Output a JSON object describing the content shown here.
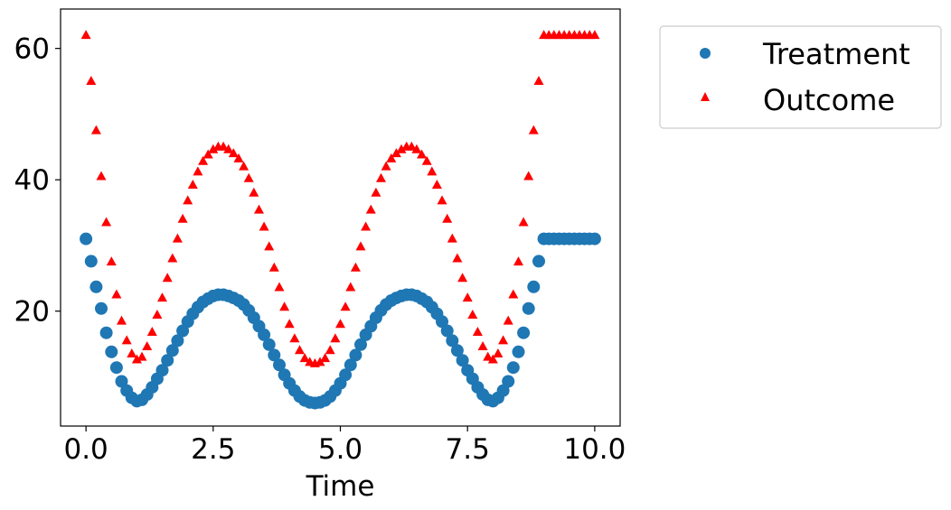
{
  "chart_data": {
    "type": "scatter",
    "title": "",
    "xlabel": "Time",
    "ylabel": "",
    "xlim": [
      -0.5,
      10.5
    ],
    "ylim": [
      2.5,
      66
    ],
    "xticks": [
      0.0,
      2.5,
      5.0,
      7.5,
      10.0
    ],
    "xtick_labels": [
      "0.0",
      "2.5",
      "5.0",
      "7.5",
      "10.0"
    ],
    "yticks": [
      20,
      40,
      60
    ],
    "ytick_labels": [
      "20",
      "40",
      "60"
    ],
    "grid": false,
    "legend_position": "outside upper right",
    "series": [
      {
        "name": "Treatment",
        "marker": "circle",
        "color": "#1f77b4",
        "x": [
          0.0,
          0.1,
          0.2,
          0.3,
          0.4,
          0.5,
          0.6,
          0.7,
          0.8,
          0.9,
          1.0,
          1.1,
          1.2,
          1.3,
          1.4,
          1.5,
          1.6,
          1.7,
          1.8,
          1.9,
          2.0,
          2.1,
          2.2,
          2.3,
          2.4,
          2.5,
          2.6,
          2.7,
          2.8,
          2.9,
          3.0,
          3.1,
          3.2,
          3.3,
          3.4,
          3.5,
          3.6,
          3.7,
          3.8,
          3.9,
          4.0,
          4.1,
          4.2,
          4.3,
          4.4,
          4.5,
          4.6,
          4.7,
          4.8,
          4.9,
          5.0,
          5.1,
          5.2,
          5.3,
          5.4,
          5.5,
          5.6,
          5.7,
          5.8,
          5.9,
          6.0,
          6.1,
          6.2,
          6.3,
          6.4,
          6.5,
          6.6,
          6.7,
          6.8,
          6.9,
          7.0,
          7.1,
          7.2,
          7.3,
          7.4,
          7.5,
          7.6,
          7.7,
          7.8,
          7.9,
          8.0,
          8.1,
          8.2,
          8.3,
          8.4,
          8.5,
          8.6,
          8.7,
          8.8,
          8.9,
          9.0,
          9.1,
          9.2,
          9.3,
          9.4,
          9.5,
          9.6,
          9.7,
          9.8,
          9.9,
          10.0
        ],
        "values": [
          31.0,
          27.6,
          23.7,
          20.4,
          16.7,
          13.8,
          11.4,
          9.3,
          7.9,
          6.8,
          6.3,
          6.5,
          7.3,
          8.4,
          9.7,
          11.0,
          12.5,
          14.0,
          15.5,
          17.0,
          18.4,
          19.6,
          20.6,
          21.4,
          21.9,
          22.3,
          22.5,
          22.5,
          22.3,
          22.0,
          21.6,
          21.0,
          20.1,
          19.0,
          17.7,
          16.4,
          14.9,
          13.3,
          11.8,
          10.3,
          9.0,
          7.9,
          7.0,
          6.4,
          6.1,
          6.0,
          6.1,
          6.4,
          7.0,
          7.9,
          9.0,
          10.3,
          11.8,
          13.3,
          14.9,
          16.4,
          17.7,
          19.0,
          20.1,
          21.0,
          21.6,
          22.0,
          22.3,
          22.5,
          22.5,
          22.3,
          21.9,
          21.4,
          20.6,
          19.6,
          18.4,
          17.0,
          15.5,
          14.0,
          12.5,
          11.0,
          9.7,
          8.4,
          7.3,
          6.5,
          6.3,
          6.8,
          7.9,
          9.3,
          11.4,
          13.8,
          16.7,
          20.4,
          23.7,
          27.6,
          31.0,
          31.0,
          31.0,
          31.0,
          31.0,
          31.0,
          31.0,
          31.0,
          31.0,
          31.0,
          31.0
        ]
      },
      {
        "name": "Outcome",
        "marker": "triangle",
        "color": "#ff0000",
        "x": [
          0.0,
          0.1,
          0.2,
          0.3,
          0.4,
          0.5,
          0.6,
          0.7,
          0.8,
          0.9,
          1.0,
          1.1,
          1.2,
          1.3,
          1.4,
          1.5,
          1.6,
          1.7,
          1.8,
          1.9,
          2.0,
          2.1,
          2.2,
          2.3,
          2.4,
          2.5,
          2.6,
          2.7,
          2.8,
          2.9,
          3.0,
          3.1,
          3.2,
          3.3,
          3.4,
          3.5,
          3.6,
          3.7,
          3.8,
          3.9,
          4.0,
          4.1,
          4.2,
          4.3,
          4.4,
          4.5,
          4.6,
          4.7,
          4.8,
          4.9,
          5.0,
          5.1,
          5.2,
          5.3,
          5.4,
          5.5,
          5.6,
          5.7,
          5.8,
          5.9,
          6.0,
          6.1,
          6.2,
          6.3,
          6.4,
          6.5,
          6.6,
          6.7,
          6.8,
          6.9,
          7.0,
          7.1,
          7.2,
          7.3,
          7.4,
          7.5,
          7.6,
          7.7,
          7.8,
          7.9,
          8.0,
          8.1,
          8.2,
          8.3,
          8.4,
          8.5,
          8.6,
          8.7,
          8.8,
          8.9,
          9.0,
          9.1,
          9.2,
          9.3,
          9.4,
          9.5,
          9.6,
          9.7,
          9.8,
          9.9,
          10.0
        ],
        "values": [
          62.0,
          55.0,
          47.5,
          40.5,
          33.5,
          27.5,
          22.5,
          18.5,
          15.5,
          13.5,
          12.6,
          13.0,
          14.6,
          16.8,
          19.4,
          22.0,
          25.0,
          28.0,
          31.0,
          34.0,
          36.8,
          39.2,
          41.2,
          42.8,
          43.8,
          44.6,
          45.0,
          45.0,
          44.6,
          44.0,
          43.2,
          42.0,
          40.2,
          38.0,
          35.4,
          32.8,
          29.8,
          26.6,
          23.6,
          20.6,
          18.0,
          15.8,
          14.0,
          12.8,
          12.2,
          12.0,
          12.2,
          12.8,
          14.0,
          15.8,
          18.0,
          20.6,
          23.6,
          26.6,
          29.8,
          32.8,
          35.4,
          38.0,
          40.2,
          42.0,
          43.2,
          44.0,
          44.6,
          45.0,
          45.0,
          44.6,
          43.8,
          42.8,
          41.2,
          39.2,
          36.8,
          34.0,
          31.0,
          28.0,
          25.0,
          22.0,
          19.4,
          16.8,
          14.6,
          13.0,
          12.6,
          13.5,
          15.5,
          18.5,
          22.5,
          27.5,
          33.5,
          40.5,
          47.5,
          55.0,
          62.0,
          62.0,
          62.0,
          62.0,
          62.0,
          62.0,
          62.0,
          62.0,
          62.0,
          62.0,
          62.0
        ]
      }
    ]
  }
}
